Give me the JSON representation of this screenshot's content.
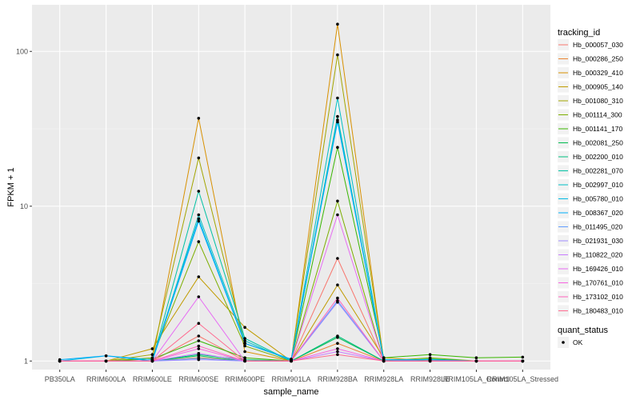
{
  "chart_data": {
    "type": "line",
    "title": "",
    "xlabel": "sample_name",
    "ylabel": "FPKM + 1",
    "y_scale": "log10",
    "ylim": [
      0.88,
      200
    ],
    "y_ticks": [
      1,
      10,
      100
    ],
    "y_tick_labels": [
      "1",
      "10",
      "100"
    ],
    "categories": [
      "PB350LA",
      "RRIM600LA",
      "RRIM600LE",
      "RRIM600SE",
      "RRIM600PE",
      "RRIM901LA",
      "RRIM928BA",
      "RRIM928LA",
      "RRIM928LE",
      "RRIM105LA_Control",
      "RRIM105LA_Stressed"
    ],
    "legend": {
      "title": "tracking_id",
      "position": "right",
      "status_title": "quant_status",
      "status_label": "OK"
    },
    "series": [
      {
        "name": "Hb_000057_030",
        "color": "#F8766D",
        "values": [
          1,
          1,
          1,
          1.45,
          1,
          1,
          4.6,
          1,
          1,
          1,
          1
        ]
      },
      {
        "name": "Hb_000286_250",
        "color": "#EA8331",
        "values": [
          1,
          1,
          1,
          1.05,
          1,
          1,
          1.3,
          1,
          1,
          1,
          1
        ]
      },
      {
        "name": "Hb_000329_410",
        "color": "#D89000",
        "values": [
          1,
          1,
          1,
          37,
          1.15,
          1,
          150,
          1,
          1.02,
          1,
          1
        ]
      },
      {
        "name": "Hb_000905_140",
        "color": "#C09B00",
        "values": [
          1,
          1,
          1.2,
          3.5,
          1.65,
          1,
          3.1,
          1.05,
          1,
          1,
          1
        ]
      },
      {
        "name": "Hb_001080_310",
        "color": "#A3A500",
        "values": [
          1,
          1,
          1.1,
          20.5,
          1.3,
          1.02,
          95,
          1.02,
          1,
          1,
          1
        ]
      },
      {
        "name": "Hb_001114_300",
        "color": "#7CAE00",
        "values": [
          1,
          1,
          1.05,
          5.9,
          1.25,
          1,
          10.8,
          1,
          1.05,
          1,
          1
        ]
      },
      {
        "name": "Hb_001141_170",
        "color": "#39B600",
        "values": [
          1,
          1,
          1.03,
          1.35,
          1.05,
          1,
          24,
          1.05,
          1.1,
          1.05,
          1.06
        ]
      },
      {
        "name": "Hb_002081_250",
        "color": "#00BB4E",
        "values": [
          1,
          1,
          1,
          1.08,
          1,
          1,
          1.42,
          1,
          1.03,
          1,
          1
        ]
      },
      {
        "name": "Hb_002200_010",
        "color": "#00BF7D",
        "values": [
          1,
          1,
          1,
          1.1,
          1.02,
          1,
          1.45,
          1,
          1.02,
          1,
          1
        ]
      },
      {
        "name": "Hb_002281_070",
        "color": "#00C1A3",
        "values": [
          1,
          1,
          1,
          12.5,
          1.4,
          1,
          38,
          1,
          1,
          1,
          1
        ]
      },
      {
        "name": "Hb_002997_010",
        "color": "#00BFC4",
        "values": [
          1,
          1,
          1,
          8.8,
          1.35,
          1,
          50,
          1,
          1,
          1,
          1
        ]
      },
      {
        "name": "Hb_005780_010",
        "color": "#00B9E3",
        "values": [
          1,
          1.08,
          1.02,
          8.3,
          1.3,
          1.03,
          36,
          1.02,
          1,
          1,
          1
        ]
      },
      {
        "name": "Hb_008367_020",
        "color": "#00ADFA",
        "values": [
          1.02,
          1.08,
          1,
          8.0,
          1.3,
          1.02,
          35,
          1.02,
          1.02,
          1,
          1
        ]
      },
      {
        "name": "Hb_011495_020",
        "color": "#619CFF",
        "values": [
          1,
          1,
          1,
          1.04,
          1,
          1,
          2.45,
          1,
          1,
          1,
          1
        ]
      },
      {
        "name": "Hb_021931_030",
        "color": "#9F8CFF",
        "values": [
          1,
          1,
          1,
          1.02,
          1,
          1,
          2.4,
          1,
          1,
          1,
          1
        ]
      },
      {
        "name": "Hb_110822_020",
        "color": "#C77CFF",
        "values": [
          1,
          1,
          1,
          1.12,
          1,
          1,
          1.15,
          1,
          1,
          1,
          1
        ]
      },
      {
        "name": "Hb_169426_010",
        "color": "#E76BF3",
        "values": [
          1,
          1,
          1,
          2.6,
          1,
          1,
          8.8,
          1,
          1,
          1,
          1
        ]
      },
      {
        "name": "Hb_170761_010",
        "color": "#F763E0",
        "values": [
          1,
          1,
          1,
          1.2,
          1,
          1,
          1.2,
          1,
          1,
          1,
          1
        ]
      },
      {
        "name": "Hb_173102_010",
        "color": "#FF62BC",
        "values": [
          1,
          1,
          1,
          1.25,
          1,
          1,
          2.55,
          1,
          1,
          1,
          1
        ]
      },
      {
        "name": "Hb_180483_010",
        "color": "#FF6C91",
        "values": [
          1,
          1,
          1,
          1.75,
          1,
          1,
          1.1,
          1,
          1,
          1,
          1
        ]
      }
    ]
  }
}
